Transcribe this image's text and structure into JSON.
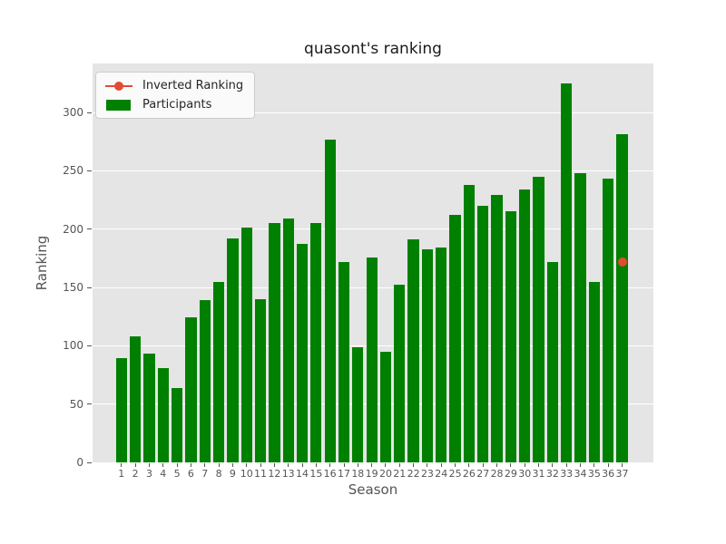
{
  "chart_data": {
    "type": "bar",
    "title": "quasont's ranking",
    "xlabel": "Season",
    "ylabel": "Ranking",
    "categories": [
      "1",
      "2",
      "3",
      "4",
      "5",
      "6",
      "7",
      "8",
      "9",
      "10",
      "11",
      "12",
      "13",
      "14",
      "15",
      "16",
      "17",
      "18",
      "19",
      "20",
      "21",
      "22",
      "23",
      "24",
      "25",
      "26",
      "27",
      "28",
      "29",
      "30",
      "31",
      "32",
      "33",
      "34",
      "35",
      "36",
      "37"
    ],
    "series": [
      {
        "name": "Inverted Ranking",
        "type": "line",
        "color": "#E24A33",
        "points": [
          {
            "x": 37,
            "y": 172
          }
        ]
      },
      {
        "name": "Participants",
        "type": "bar",
        "color": "#008000",
        "values": [
          89,
          108,
          93,
          81,
          64,
          124,
          139,
          155,
          192,
          201,
          140,
          205,
          209,
          187,
          205,
          277,
          172,
          99,
          176,
          95,
          152,
          191,
          183,
          184,
          212,
          238,
          220,
          229,
          215,
          234,
          245,
          172,
          325,
          248,
          155,
          243,
          281
        ]
      }
    ],
    "yticks": [
      0,
      50,
      100,
      150,
      200,
      250,
      300
    ],
    "ylim": [
      0,
      342
    ],
    "grid": true,
    "legend_position": "upper left",
    "colors": {
      "plot_bg": "#e5e5e5",
      "grid": "#ffffff",
      "tick_label": "#555555",
      "bar": "#008000",
      "line": "#E24A33"
    }
  }
}
